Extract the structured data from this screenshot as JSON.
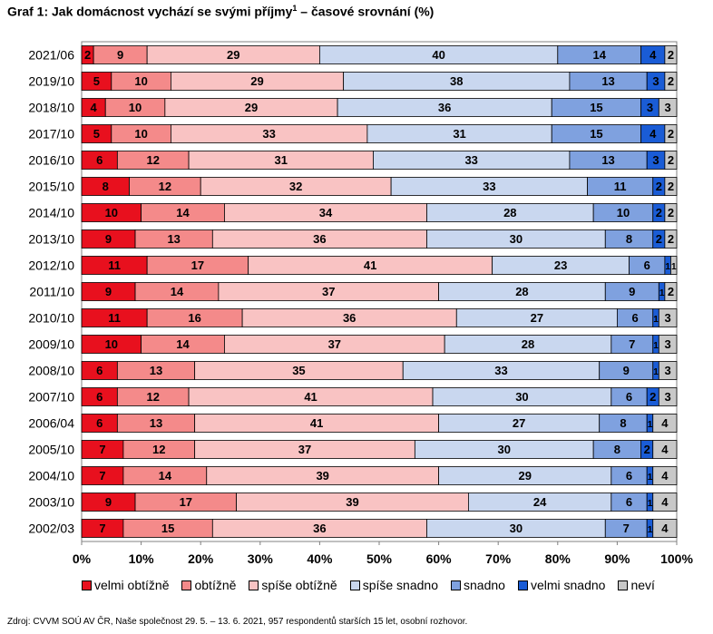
{
  "title": {
    "main": "Graf 1: Jak domácnost vychází se svými příjmy",
    "sup": "1",
    "rest": " – časové srovnání (%)"
  },
  "source": "Zdroj: CVVM SOÚ AV ČR, Naše společnost 29. 5. – 13. 6. 2021, 957 respondentů starších 15 let, osobní rozhovor.",
  "colors": [
    "#e8101e",
    "#f48a8a",
    "#f9c3c3",
    "#c9d7ef",
    "#7fa1df",
    "#1a5cd6",
    "#c8c8c8"
  ],
  "chart_data": {
    "type": "bar",
    "orientation": "horizontal",
    "stacked": true,
    "xlim": [
      0,
      100
    ],
    "x_ticks": [
      "0%",
      "10%",
      "20%",
      "30%",
      "40%",
      "50%",
      "60%",
      "70%",
      "80%",
      "90%",
      "100%"
    ],
    "categories": [
      "2021/06",
      "2019/10",
      "2018/10",
      "2017/10",
      "2016/10",
      "2015/10",
      "2014/10",
      "2013/10",
      "2012/10",
      "2011/10",
      "2010/10",
      "2009/10",
      "2008/10",
      "2007/10",
      "2006/04",
      "2005/10",
      "2004/10",
      "2003/10",
      "2002/03"
    ],
    "legend_position": "bottom",
    "series": [
      {
        "name": "velmi obtížně",
        "values": [
          2,
          5,
          4,
          5,
          6,
          8,
          10,
          9,
          11,
          9,
          11,
          10,
          6,
          6,
          6,
          7,
          7,
          9,
          7
        ]
      },
      {
        "name": "obtížně",
        "values": [
          9,
          10,
          10,
          10,
          12,
          12,
          14,
          13,
          17,
          14,
          16,
          14,
          13,
          12,
          13,
          12,
          14,
          17,
          15
        ]
      },
      {
        "name": "spíše obtížně",
        "values": [
          29,
          29,
          29,
          33,
          31,
          32,
          34,
          36,
          41,
          37,
          36,
          37,
          35,
          41,
          41,
          37,
          39,
          39,
          36
        ]
      },
      {
        "name": "spíše snadno",
        "values": [
          40,
          38,
          36,
          31,
          33,
          33,
          28,
          30,
          23,
          28,
          27,
          28,
          33,
          30,
          27,
          30,
          29,
          24,
          30
        ]
      },
      {
        "name": "snadno",
        "values": [
          14,
          13,
          15,
          15,
          13,
          11,
          10,
          8,
          6,
          9,
          6,
          7,
          9,
          6,
          8,
          8,
          6,
          6,
          7
        ]
      },
      {
        "name": "velmi snadno",
        "values": [
          4,
          3,
          3,
          4,
          3,
          2,
          2,
          2,
          1,
          1,
          1,
          1,
          1,
          2,
          1,
          2,
          1,
          1,
          1
        ]
      },
      {
        "name": "neví",
        "values": [
          2,
          2,
          3,
          2,
          2,
          2,
          2,
          2,
          1,
          2,
          3,
          3,
          3,
          3,
          4,
          4,
          4,
          4,
          4
        ]
      }
    ]
  }
}
